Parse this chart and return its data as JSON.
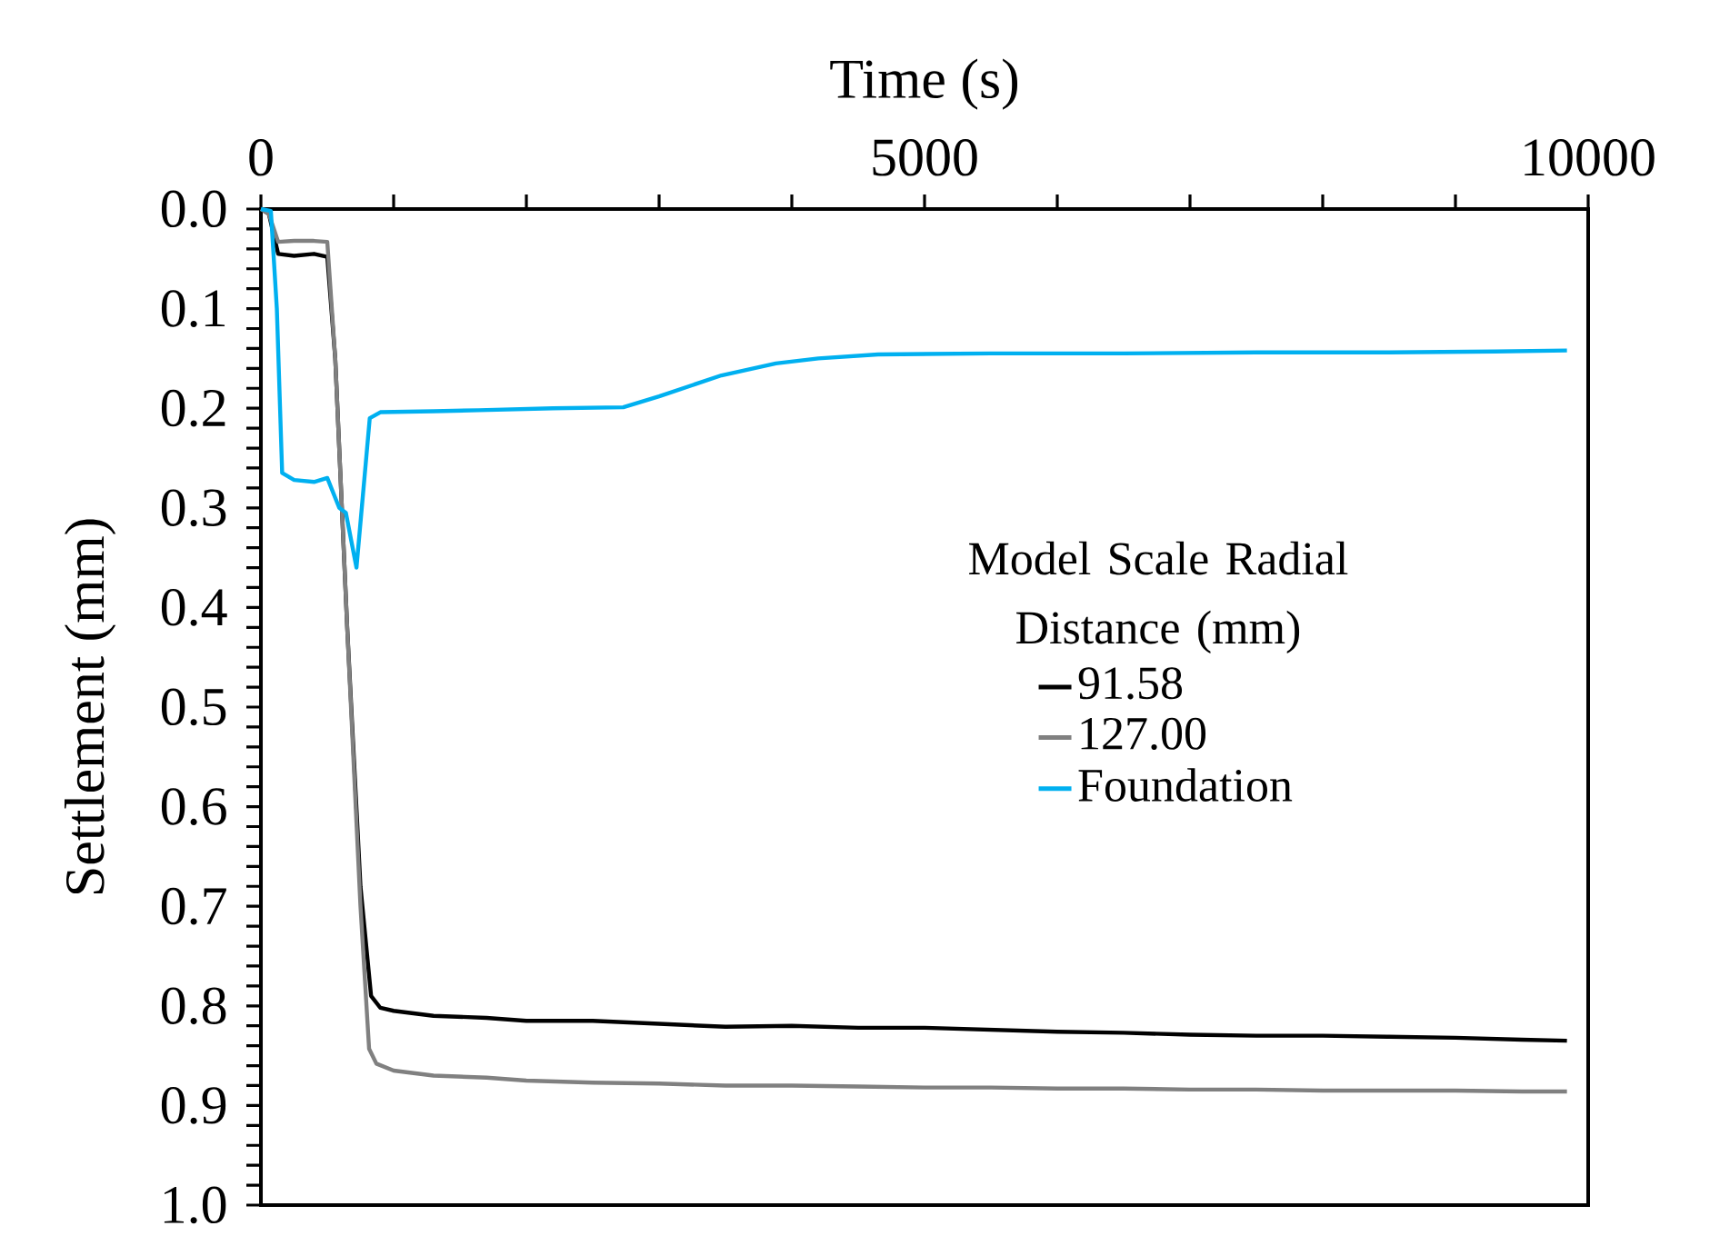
{
  "chart_data": {
    "type": "line",
    "xlabel": "Time (s)",
    "ylabel": "Settlement (mm)",
    "legend_title": "Model Scale Radial Distance (mm)",
    "xlim": [
      0,
      10000
    ],
    "ylim": [
      1.0,
      0.0
    ],
    "xticks": [
      0,
      {
        "value": 1000,
        "label": null
      },
      {
        "value": 2000,
        "label": null
      },
      {
        "value": 3000,
        "label": null
      },
      {
        "value": 4000,
        "label": null
      },
      5000,
      {
        "value": 6000,
        "label": null
      },
      {
        "value": 7000,
        "label": null
      },
      {
        "value": 8000,
        "label": null
      },
      {
        "value": 9000,
        "label": null
      },
      10000
    ],
    "yticks": [
      {
        "value": 0,
        "label": "0.0"
      },
      {
        "value": 0.02,
        "label": null
      },
      {
        "value": 0.04,
        "label": null
      },
      {
        "value": 0.06,
        "label": null
      },
      {
        "value": 0.08,
        "label": null
      },
      {
        "value": 0.1,
        "label": "0.1"
      },
      {
        "value": 0.12,
        "label": null
      },
      {
        "value": 0.14,
        "label": null
      },
      {
        "value": 0.16,
        "label": null
      },
      {
        "value": 0.18,
        "label": null
      },
      {
        "value": 0.2,
        "label": "0.2"
      },
      {
        "value": 0.22,
        "label": null
      },
      {
        "value": 0.24,
        "label": null
      },
      {
        "value": 0.26,
        "label": null
      },
      {
        "value": 0.28,
        "label": null
      },
      {
        "value": 0.3,
        "label": "0.3"
      },
      {
        "value": 0.32,
        "label": null
      },
      {
        "value": 0.34,
        "label": null
      },
      {
        "value": 0.36,
        "label": null
      },
      {
        "value": 0.38,
        "label": null
      },
      {
        "value": 0.4,
        "label": "0.4"
      },
      {
        "value": 0.42,
        "label": null
      },
      {
        "value": 0.44,
        "label": null
      },
      {
        "value": 0.46,
        "label": null
      },
      {
        "value": 0.48,
        "label": null
      },
      {
        "value": 0.5,
        "label": "0.5"
      },
      {
        "value": 0.52,
        "label": null
      },
      {
        "value": 0.54,
        "label": null
      },
      {
        "value": 0.56,
        "label": null
      },
      {
        "value": 0.58,
        "label": null
      },
      {
        "value": 0.6,
        "label": "0.6"
      },
      {
        "value": 0.62,
        "label": null
      },
      {
        "value": 0.64,
        "label": null
      },
      {
        "value": 0.66,
        "label": null
      },
      {
        "value": 0.68,
        "label": null
      },
      {
        "value": 0.7,
        "label": "0.7"
      },
      {
        "value": 0.72,
        "label": null
      },
      {
        "value": 0.74,
        "label": null
      },
      {
        "value": 0.76,
        "label": null
      },
      {
        "value": 0.78,
        "label": null
      },
      {
        "value": 0.8,
        "label": "0.8"
      },
      {
        "value": 0.82,
        "label": null
      },
      {
        "value": 0.84,
        "label": null
      },
      {
        "value": 0.86,
        "label": null
      },
      {
        "value": 0.88,
        "label": null
      },
      {
        "value": 0.9,
        "label": "0.9"
      },
      {
        "value": 0.92,
        "label": null
      },
      {
        "value": 0.94,
        "label": null
      },
      {
        "value": 0.96,
        "label": null
      },
      {
        "value": 0.98,
        "label": null
      },
      {
        "value": 1.0,
        "label": "1.0"
      }
    ],
    "grid": false,
    "legend": "right",
    "marker": "none",
    "line_style": "solid",
    "series": [
      {
        "name": "91.58",
        "color": "#000000",
        "x": [
          0,
          60,
          130,
          250,
          400,
          500,
          560,
          650,
          750,
          830,
          900,
          1000,
          1300,
          1700,
          2000,
          2500,
          3000,
          3500,
          4000,
          4500,
          5000,
          5500,
          6000,
          6500,
          7000,
          7500,
          8000,
          8500,
          9000,
          9500,
          9840
        ],
        "values": [
          0,
          0.005,
          0.045,
          0.047,
          0.045,
          0.048,
          0.15,
          0.42,
          0.68,
          0.79,
          0.802,
          0.805,
          0.81,
          0.812,
          0.815,
          0.815,
          0.818,
          0.821,
          0.82,
          0.822,
          0.822,
          0.824,
          0.826,
          0.827,
          0.829,
          0.83,
          0.83,
          0.831,
          0.832,
          0.834,
          0.835
        ]
      },
      {
        "name": "127.00",
        "color": "#808080",
        "x": [
          0,
          60,
          130,
          250,
          400,
          500,
          560,
          650,
          750,
          815,
          870,
          1000,
          1300,
          1700,
          2000,
          2500,
          3000,
          3500,
          4000,
          4500,
          5000,
          5500,
          6000,
          6500,
          7000,
          7500,
          8000,
          8500,
          9000,
          9500,
          9840
        ],
        "values": [
          0,
          0.005,
          0.033,
          0.032,
          0.032,
          0.033,
          0.15,
          0.42,
          0.7,
          0.843,
          0.858,
          0.865,
          0.87,
          0.872,
          0.875,
          0.877,
          0.878,
          0.88,
          0.88,
          0.881,
          0.882,
          0.882,
          0.883,
          0.883,
          0.884,
          0.884,
          0.885,
          0.885,
          0.885,
          0.886,
          0.886
        ]
      },
      {
        "name": "Foundation",
        "color": "#00b0f0",
        "x": [
          0,
          75,
          120,
          160,
          250,
          400,
          500,
          590,
          640,
          720,
          820,
          900,
          1300,
          1640,
          2200,
          2730,
          3000,
          3470,
          3880,
          4200,
          4650,
          5500,
          6500,
          7500,
          8500,
          9300,
          9840
        ],
        "values": [
          0,
          0.002,
          0.1,
          0.265,
          0.272,
          0.274,
          0.27,
          0.3,
          0.305,
          0.36,
          0.21,
          0.204,
          0.203,
          0.202,
          0.2,
          0.199,
          0.188,
          0.167,
          0.155,
          0.15,
          0.146,
          0.145,
          0.145,
          0.144,
          0.144,
          0.143,
          0.142
        ]
      }
    ]
  }
}
